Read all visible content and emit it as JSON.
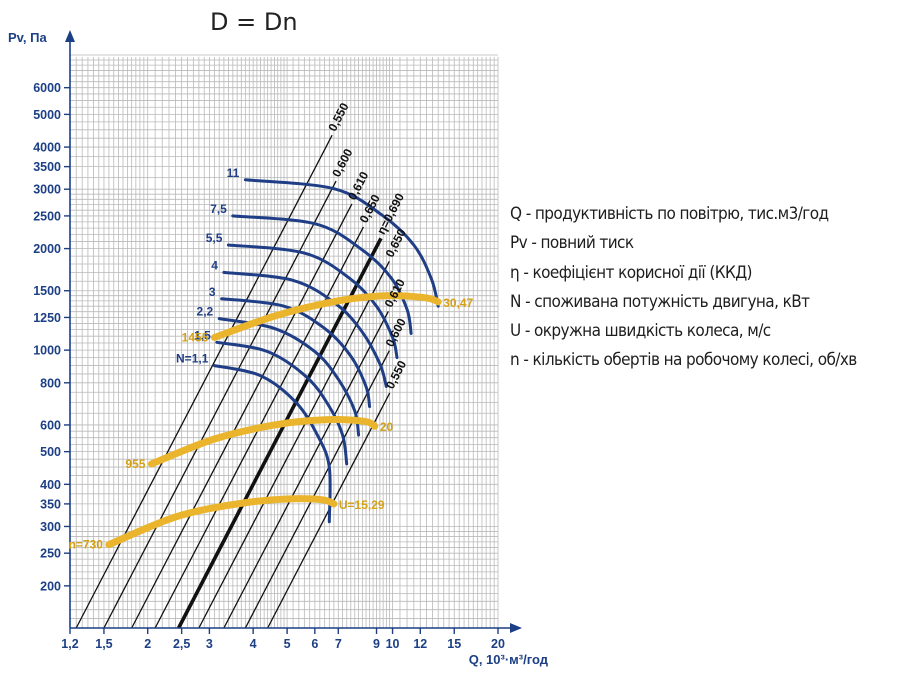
{
  "chart_data": {
    "type": "line",
    "title": "D = Dn",
    "xlabel": "Q, 10³·м³/год",
    "ylabel": "Pv, Па",
    "x_scale": "log",
    "y_scale": "log",
    "xlim": [
      1.2,
      20
    ],
    "ylim": [
      150,
      7500
    ],
    "x_ticks": [
      1.2,
      1.5,
      2,
      2.5,
      3,
      4,
      5,
      6,
      7,
      9,
      10,
      12,
      15,
      20
    ],
    "x_tick_labels": [
      "1,2",
      "1,5",
      "2",
      "2,5",
      "3",
      "4",
      "5",
      "6",
      "7",
      "9",
      "10",
      "12",
      "15",
      "20"
    ],
    "y_ticks": [
      200,
      250,
      300,
      350,
      400,
      500,
      600,
      800,
      1000,
      1250,
      1500,
      2000,
      2500,
      3000,
      3500,
      4000,
      5000,
      6000
    ],
    "y_tick_labels": [
      "200",
      "250",
      "300",
      "350",
      "400",
      "500",
      "600",
      "800",
      "1000",
      "1250",
      "1500",
      "2000",
      "2500",
      "3000",
      "3500",
      "4000",
      "5000",
      "6000"
    ],
    "efficiency_lines": {
      "description": "η - constant efficiency lines (Pv ∝ Q²)",
      "lines": [
        {
          "label": "0,550",
          "side": "left",
          "x_at_bottom": 1.25
        },
        {
          "label": "0,600",
          "side": "left",
          "x_at_bottom": 1.5
        },
        {
          "label": "0,610",
          "side": "left",
          "x_at_bottom": 1.8
        },
        {
          "label": "0,650",
          "side": "left",
          "x_at_bottom": 2.1
        },
        {
          "label": "η=0,690",
          "side": "peak",
          "x_at_bottom": 2.45,
          "bold": true
        },
        {
          "label": "0,650",
          "side": "right",
          "x_at_bottom": 2.8
        },
        {
          "label": "0,610",
          "side": "right",
          "x_at_bottom": 3.3
        },
        {
          "label": "0,600",
          "side": "right",
          "x_at_bottom": 3.8
        },
        {
          "label": "0,550",
          "side": "right",
          "x_at_bottom": 4.4
        }
      ]
    },
    "power_curves": {
      "description": "N - motor power consumption, kW",
      "series": [
        {
          "label": "N=1,1",
          "points": [
            [
              3.1,
              900
            ],
            [
              4.2,
              840
            ],
            [
              5.3,
              700
            ],
            [
              6.1,
              560
            ],
            [
              6.6,
              450
            ],
            [
              6.6,
              310
            ]
          ]
        },
        {
          "label": "1,5",
          "points": [
            [
              3.15,
              1055
            ],
            [
              4.4,
              990
            ],
            [
              5.7,
              830
            ],
            [
              6.6,
              680
            ],
            [
              7.2,
              560
            ],
            [
              7.4,
              460
            ]
          ]
        },
        {
          "label": "2,2",
          "points": [
            [
              3.2,
              1240
            ],
            [
              4.6,
              1160
            ],
            [
              6.0,
              990
            ],
            [
              7.0,
              820
            ],
            [
              7.8,
              660
            ],
            [
              8.0,
              560
            ]
          ]
        },
        {
          "label": "3",
          "points": [
            [
              3.25,
              1420
            ],
            [
              4.9,
              1350
            ],
            [
              6.4,
              1160
            ],
            [
              7.6,
              960
            ],
            [
              8.4,
              780
            ],
            [
              8.6,
              680
            ]
          ]
        },
        {
          "label": "4",
          "points": [
            [
              3.3,
              1700
            ],
            [
              5.2,
              1610
            ],
            [
              6.9,
              1370
            ],
            [
              8.2,
              1130
            ],
            [
              9.2,
              910
            ],
            [
              9.6,
              780
            ]
          ]
        },
        {
          "label": "5,5",
          "points": [
            [
              3.4,
              2050
            ],
            [
              5.6,
              1940
            ],
            [
              7.5,
              1640
            ],
            [
              9.0,
              1350
            ],
            [
              10.0,
              1090
            ],
            [
              10.3,
              950
            ]
          ]
        },
        {
          "label": "7,5",
          "points": [
            [
              3.5,
              2500
            ],
            [
              6.0,
              2370
            ],
            [
              8.1,
              2000
            ],
            [
              9.9,
              1640
            ],
            [
              11.0,
              1320
            ],
            [
              11.3,
              1120
            ]
          ]
        },
        {
          "label": "11",
          "points": [
            [
              3.8,
              3200
            ],
            [
              6.8,
              3010
            ],
            [
              9.3,
              2520
            ],
            [
              11.5,
              2050
            ],
            [
              12.9,
              1630
            ],
            [
              13.5,
              1350
            ]
          ]
        }
      ]
    },
    "speed_curves": {
      "description": "n - impeller revolutions, rpm; U - circumferential speed, m/s",
      "series": [
        {
          "label_start": "n=730",
          "label_end": "U=15,29",
          "points": [
            [
              1.55,
              265
            ],
            [
              2.4,
              320
            ],
            [
              3.6,
              350
            ],
            [
              5.0,
              362
            ],
            [
              6.3,
              360
            ],
            [
              6.8,
              350
            ]
          ]
        },
        {
          "label_start": "955",
          "label_end": "20",
          "points": [
            [
              2.05,
              460
            ],
            [
              3.1,
              545
            ],
            [
              4.6,
              600
            ],
            [
              6.4,
              622
            ],
            [
              8.3,
              615
            ],
            [
              8.9,
              595
            ]
          ]
        },
        {
          "label_start": "1455",
          "label_end": "30,47",
          "points": [
            [
              3.1,
              1090
            ],
            [
              4.7,
              1270
            ],
            [
              7.0,
              1400
            ],
            [
              9.6,
              1450
            ],
            [
              12.4,
              1430
            ],
            [
              13.5,
              1390
            ]
          ]
        }
      ]
    },
    "legend": [
      "Q - продуктивність по повітрю, тис.м3/год",
      "Pv - повний тиск",
      "η - коефіцієнт корисної дії (ККД)",
      "N - споживана потужність двигуна, кВт",
      "U - окружна швидкість колеса, м/с",
      "n - кількість обертів на робочому колесі, об/хв"
    ],
    "colors": {
      "axis": "#1c3f85",
      "grid": "#b9b9b9",
      "efficiency_line": "#111111",
      "power_curve": "#1f3e86",
      "speed_curve": "#eab52c",
      "speed_label": "#d4a015",
      "text": "#1e1e1e"
    }
  }
}
